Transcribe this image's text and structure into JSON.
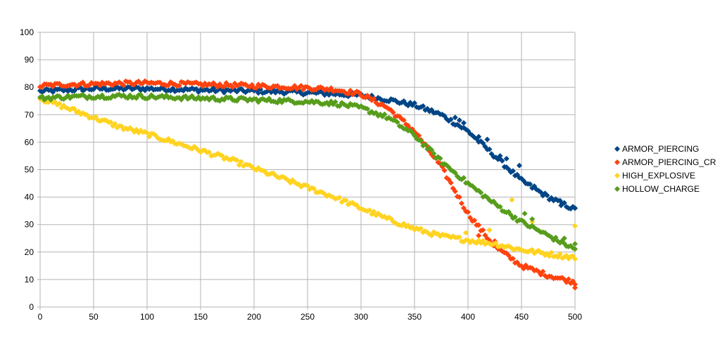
{
  "chart_data": {
    "type": "scatter",
    "xlim": [
      0,
      500
    ],
    "ylim": [
      0,
      100
    ],
    "x_ticks": [
      0,
      50,
      100,
      150,
      200,
      250,
      300,
      350,
      400,
      450,
      500
    ],
    "y_ticks": [
      0,
      10,
      20,
      30,
      40,
      50,
      60,
      70,
      80,
      90,
      100
    ],
    "grid": true,
    "legend_position": "right",
    "marker": "diamond",
    "series": [
      {
        "name": "ARMOR_PIERCING",
        "color": "#004586",
        "points": [
          [
            0,
            78.5
          ],
          [
            25,
            79
          ],
          [
            50,
            79.5
          ],
          [
            75,
            79.5
          ],
          [
            100,
            79.5
          ],
          [
            125,
            79.3
          ],
          [
            150,
            79
          ],
          [
            175,
            78.8
          ],
          [
            200,
            78.6
          ],
          [
            225,
            78.4
          ],
          [
            250,
            78
          ],
          [
            275,
            77.6
          ],
          [
            300,
            77
          ],
          [
            325,
            75.5
          ],
          [
            350,
            73.5
          ],
          [
            375,
            70
          ],
          [
            400,
            64
          ],
          [
            425,
            55
          ],
          [
            450,
            46
          ],
          [
            475,
            40
          ],
          [
            500,
            35.5
          ]
        ],
        "outliers": [
          [
            388,
            69
          ],
          [
            392,
            68
          ],
          [
            396,
            67
          ],
          [
            410,
            62
          ],
          [
            418,
            61
          ],
          [
            430,
            55
          ],
          [
            436,
            54
          ],
          [
            448,
            51.5
          ],
          [
            462,
            44
          ],
          [
            487,
            37
          ],
          [
            500,
            36
          ]
        ]
      },
      {
        "name": "ARMOR_PIERCING_CR",
        "color": "#ff420e",
        "points": [
          [
            0,
            80.5
          ],
          [
            25,
            81
          ],
          [
            50,
            81.2
          ],
          [
            75,
            81.4
          ],
          [
            100,
            81.5
          ],
          [
            125,
            81.3
          ],
          [
            150,
            81
          ],
          [
            175,
            80.8
          ],
          [
            200,
            80.5
          ],
          [
            225,
            80.2
          ],
          [
            250,
            79.8
          ],
          [
            275,
            79.2
          ],
          [
            300,
            77.5
          ],
          [
            325,
            72.5
          ],
          [
            350,
            64
          ],
          [
            375,
            51
          ],
          [
            400,
            34
          ],
          [
            425,
            22
          ],
          [
            450,
            15
          ],
          [
            475,
            11.5
          ],
          [
            500,
            9
          ]
        ],
        "outliers": [
          [
            410,
            26
          ],
          [
            425,
            24
          ],
          [
            500,
            7
          ]
        ]
      },
      {
        "name": "HIGH_EXPLOSIVE",
        "color": "#ffd320",
        "points": [
          [
            0,
            76
          ],
          [
            25,
            72.5
          ],
          [
            50,
            69
          ],
          [
            75,
            65.5
          ],
          [
            100,
            63
          ],
          [
            125,
            60
          ],
          [
            150,
            57
          ],
          [
            175,
            54
          ],
          [
            200,
            50.5
          ],
          [
            225,
            47
          ],
          [
            250,
            43.5
          ],
          [
            275,
            40
          ],
          [
            300,
            36
          ],
          [
            325,
            32
          ],
          [
            350,
            28.5
          ],
          [
            375,
            25.8
          ],
          [
            400,
            24.3
          ],
          [
            425,
            23
          ],
          [
            450,
            20.8
          ],
          [
            475,
            19.3
          ],
          [
            500,
            18
          ]
        ],
        "outliers": [
          [
            398,
            27
          ],
          [
            420,
            28
          ],
          [
            441,
            39
          ],
          [
            460,
            31
          ],
          [
            500,
            29.5
          ]
        ]
      },
      {
        "name": "HOLLOW_CHARGE",
        "color": "#579d1c",
        "points": [
          [
            0,
            76
          ],
          [
            25,
            76.5
          ],
          [
            50,
            76.7
          ],
          [
            75,
            76.8
          ],
          [
            100,
            76.6
          ],
          [
            125,
            76.3
          ],
          [
            150,
            76
          ],
          [
            175,
            75.7
          ],
          [
            200,
            75.4
          ],
          [
            225,
            75.1
          ],
          [
            250,
            74.8
          ],
          [
            275,
            74.2
          ],
          [
            300,
            72.5
          ],
          [
            325,
            69
          ],
          [
            350,
            62.5
          ],
          [
            375,
            53
          ],
          [
            400,
            45
          ],
          [
            425,
            37.5
          ],
          [
            450,
            31
          ],
          [
            475,
            26
          ],
          [
            500,
            21
          ]
        ],
        "outliers": [
          [
            453,
            34
          ],
          [
            460,
            32
          ],
          [
            490,
            25
          ],
          [
            500,
            23
          ]
        ]
      }
    ]
  }
}
